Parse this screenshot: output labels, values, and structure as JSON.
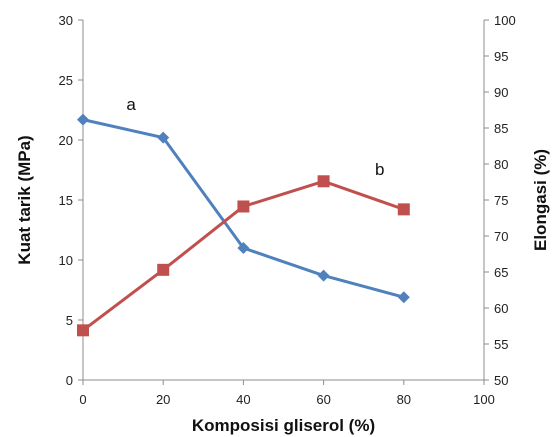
{
  "chart_data": {
    "type": "line",
    "xlabel": "Komposisi gliserol (%)",
    "ylabel": "Kuat tarik (MPa)",
    "y2label": "Elongasi (%)",
    "xlim": [
      0,
      100
    ],
    "ylim": [
      0,
      30
    ],
    "y2lim": [
      50,
      100
    ],
    "xticks": [
      "0",
      "20",
      "40",
      "60",
      "80",
      "100"
    ],
    "yticks": [
      "0",
      "5",
      "10",
      "15",
      "20",
      "25",
      "30"
    ],
    "y2ticks": [
      "50",
      "55",
      "60",
      "65",
      "70",
      "75",
      "80",
      "85",
      "90",
      "95",
      "100"
    ],
    "grid": false,
    "legend": "none",
    "series": [
      {
        "axis": "left",
        "color": "#4f81bd",
        "marker": "diamond",
        "x": [
          0,
          20,
          40,
          60,
          80
        ],
        "y": [
          21.7,
          20.2,
          11.0,
          8.7,
          6.9
        ]
      },
      {
        "axis": "right",
        "color": "#c0504d",
        "marker": "square",
        "x": [
          0,
          20,
          40,
          60,
          80
        ],
        "y": [
          56.9,
          65.3,
          74.1,
          77.6,
          73.7
        ]
      }
    ],
    "annotations": [
      {
        "text": "a",
        "x": 12,
        "y": 22.5,
        "axis": "left"
      },
      {
        "text": "b",
        "x": 74,
        "y": 78.5,
        "axis": "right"
      }
    ]
  }
}
